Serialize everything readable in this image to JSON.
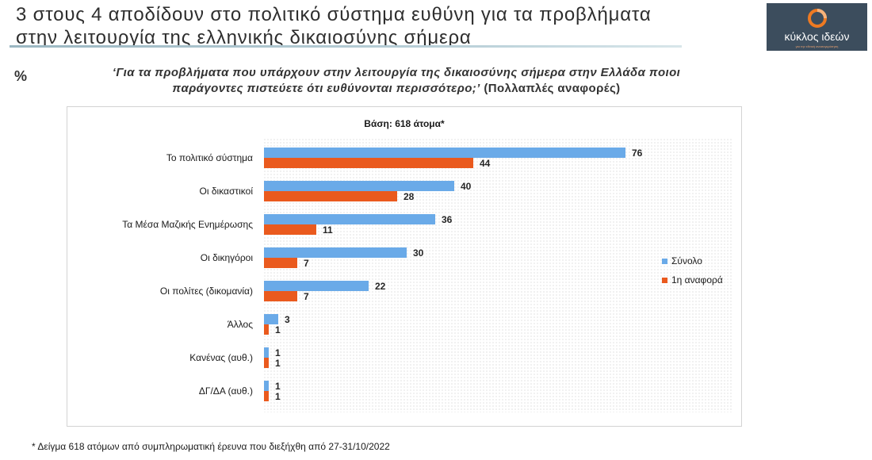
{
  "header": {
    "title_line1": "3 στους 4 αποδίδουν στο πολιτικό σύστημα ευθύνη για τα προβλήματα",
    "title_line2": "στην λειτουργία της ελληνικής δικαιοσύνης σήμερα",
    "percent_sign": "%",
    "question_line1": "‘Για τα προβλήματα που υπάρχουν στην λειτουργία της δικαιοσύνης σήμερα στην Ελλάδα ποιοι",
    "question_line2_main": "παράγοντες πιστεύετε ότι ευθύνονται περισσότερο;’",
    "question_line2_note": " (Πολλαπλές αναφορές)"
  },
  "logo": {
    "text": "κύκλος ιδεών",
    "subtext": "για την εθνική ανασυγκρότηση",
    "accent": "#ee7a22",
    "background": "#3c4d5d"
  },
  "footnote": "*  Δείγμα 618 ατόμων από συμπληρωματική έρευνα που διεξήχθη από 27-31/10/2022",
  "chart_data": {
    "type": "bar",
    "orientation": "horizontal",
    "title": "Βάση: 618 άτομα*",
    "categories": [
      "Το πολιτικό σύστημα",
      "Οι δικαστικοί",
      "Τα Μέσα Μαζικής Ενημέρωσης",
      "Οι δικηγόροι",
      "Οι πολίτες (δικομανία)",
      "Άλλος",
      "Κανένας (αυθ.)",
      "ΔΓ/ΔΑ (αυθ.)"
    ],
    "series": [
      {
        "name": "Σύνολο",
        "color": "#6aaae8",
        "values": [
          76,
          40,
          36,
          30,
          22,
          3,
          1,
          1
        ]
      },
      {
        "name": "1η αναφορά",
        "color": "#ea5a1e",
        "values": [
          44,
          28,
          11,
          7,
          7,
          1,
          1,
          1
        ]
      }
    ],
    "xlim": [
      0,
      100
    ],
    "legend_position": "right",
    "grid": true
  }
}
